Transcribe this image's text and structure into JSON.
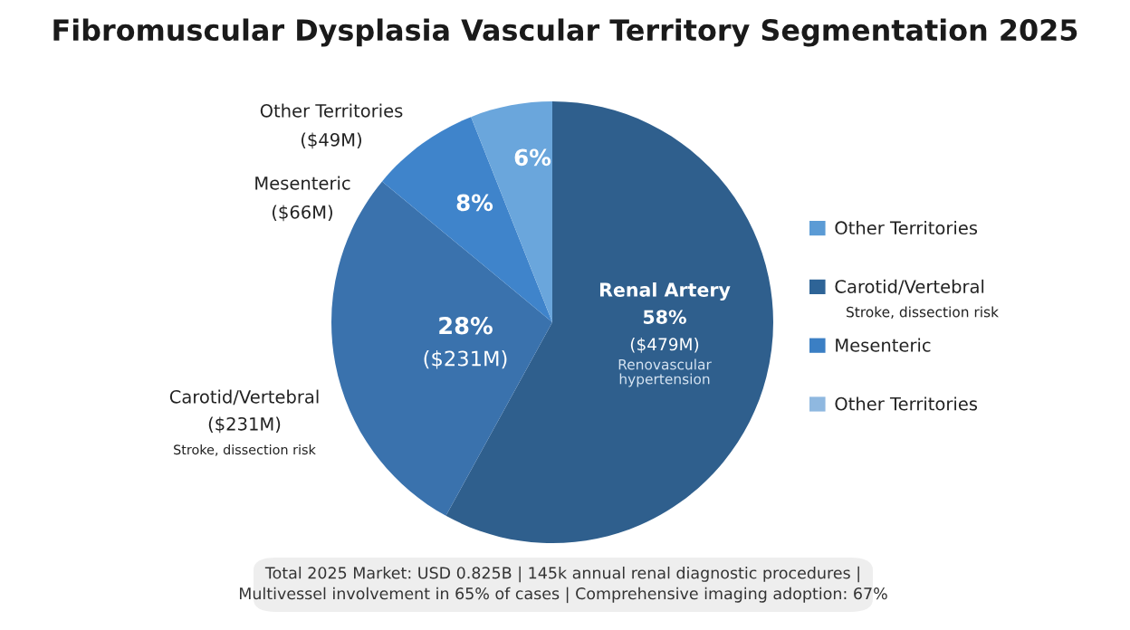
{
  "chart_data": [
    {
      "type": "pie",
      "title": "Fibromuscular Dysplasia Vascular Territory Segmentation 2025",
      "categories": [
        "Renal Artery",
        "Carotid/Vertebral",
        "Mesenteric",
        "Other Territories"
      ],
      "values": [
        58,
        28,
        8,
        6
      ],
      "colors": [
        "#2f5f8d",
        "#3a72ad",
        "#3f84cb",
        "#6aa6dc"
      ],
      "value_labels": [
        "58%",
        "28%",
        "8%",
        "6%"
      ],
      "legend": "right",
      "annotations": [
        "($479M)",
        "Renovascular hypertension",
        "($231M)",
        "($231M)",
        "Stroke, dissection risk",
        "($66M)",
        "($49M)",
        "Total 2025 Market: USD 0.825B | 145k annual renal diagnostic procedures | Multivessel involvement in 65% of cases | Comprehensive imaging adoption: 67%"
      ]
    },
    {
      "type": "other",
      "categories": [
        "Other Territories",
        "Carotid/Vertebral",
        "Mesenteric",
        "Other Territories"
      ],
      "colors": [
        "#5b9bd5",
        "#2e6497",
        "#3b7fc4",
        "#8fb8e0"
      ],
      "annotations": [
        "Stroke, dissection risk"
      ]
    }
  ]
}
